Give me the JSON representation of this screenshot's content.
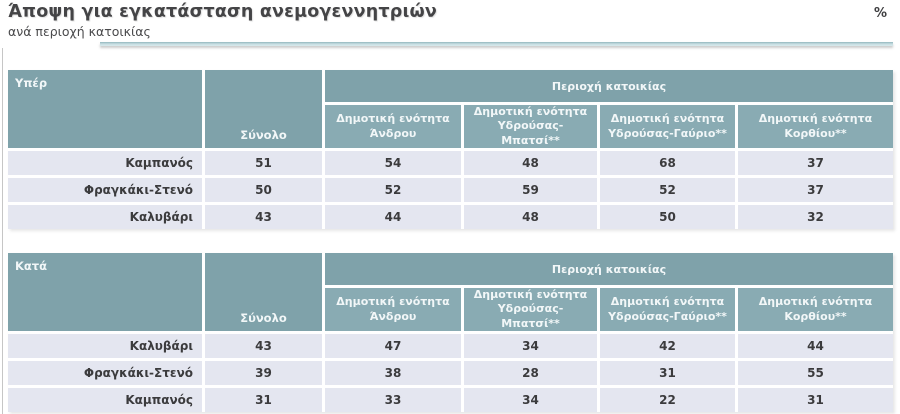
{
  "page": {
    "title": "Άποψη για εγκατάσταση ανεμογεννητριών",
    "subtitle": "ανά περιοχή κατοικίας",
    "unit": "%"
  },
  "colors": {
    "header_teal": "#7fa2aa",
    "subheader_teal": "#89abb3",
    "row_background": "#e4e6f0",
    "accent_bar": "#c6dde1",
    "text_dark": "#3b3b3d"
  },
  "chart_data": [
    {
      "type": "table",
      "title": "Υπέρ",
      "column_group": "Περιοχή κατοικίας",
      "columns": [
        "Σύνολο",
        "Δημοτική ενότητα Άνδρου",
        "Δημοτική ενότητα Υδρούσας-Μπατσί**",
        "Δημοτική ενότητα Υδρούσας-Γαύριο**",
        "Δημοτική ενότητα Κορθίου**"
      ],
      "rows": [
        {
          "label": "Καμπανός",
          "values": [
            51,
            54,
            48,
            68,
            37
          ]
        },
        {
          "label": "Φραγκάκι-Στενό",
          "values": [
            50,
            52,
            59,
            52,
            37
          ]
        },
        {
          "label": "Καλυβάρι",
          "values": [
            43,
            44,
            48,
            50,
            32
          ]
        }
      ]
    },
    {
      "type": "table",
      "title": "Κατά",
      "column_group": "Περιοχή κατοικίας",
      "columns": [
        "Σύνολο",
        "Δημοτική ενότητα Άνδρου",
        "Δημοτική ενότητα Υδρούσας-Μπατσί**",
        "Δημοτική ενότητα Υδρούσας-Γαύριο**",
        "Δημοτική ενότητα Κορθίου**"
      ],
      "rows": [
        {
          "label": "Καλυβάρι",
          "values": [
            43,
            47,
            34,
            42,
            44
          ]
        },
        {
          "label": "Φραγκάκι-Στενό",
          "values": [
            39,
            38,
            28,
            31,
            55
          ]
        },
        {
          "label": "Καμπανός",
          "values": [
            31,
            33,
            34,
            22,
            31
          ]
        }
      ]
    }
  ]
}
